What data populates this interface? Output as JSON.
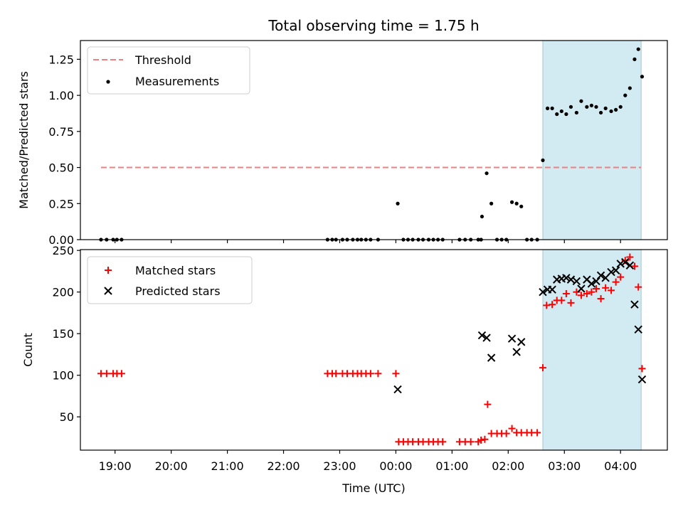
{
  "chart_data": [
    {
      "type": "scatter",
      "title": "Total observing time = 1.75 h",
      "ylabel": "Matched/Predicted stars",
      "xlabel": "",
      "xlim": [
        "18:23",
        "04:50"
      ],
      "ylim": [
        0,
        1.38
      ],
      "yticks": [
        "0.00",
        "0.25",
        "0.50",
        "0.75",
        "1.00",
        "1.25"
      ],
      "shaded_region": {
        "start": "02:37",
        "end": "04:22"
      },
      "threshold": {
        "value": 0.5,
        "start": "18:45",
        "end": "04:22",
        "color": "#f08080"
      },
      "legend": {
        "placement": "top-left",
        "entries": [
          "Threshold",
          "Measurements"
        ]
      },
      "series": [
        {
          "name": "Measurements",
          "color": "#000000",
          "marker": "dot",
          "points": [
            [
              "18:45",
              0
            ],
            [
              "18:51",
              0
            ],
            [
              "18:58",
              0
            ],
            [
              "19:02",
              0
            ],
            [
              "19:07",
              0
            ],
            [
              "22:47",
              0
            ],
            [
              "22:52",
              0
            ],
            [
              "22:56",
              0
            ],
            [
              "23:03",
              0
            ],
            [
              "23:08",
              0
            ],
            [
              "23:14",
              0
            ],
            [
              "23:19",
              0
            ],
            [
              "23:23",
              0
            ],
            [
              "23:28",
              0
            ],
            [
              "23:33",
              0
            ],
            [
              "23:41",
              0
            ],
            [
              "00:02",
              0.25
            ],
            [
              "00:08",
              0
            ],
            [
              "00:13",
              0
            ],
            [
              "00:18",
              0
            ],
            [
              "00:24",
              0
            ],
            [
              "00:29",
              0
            ],
            [
              "00:35",
              0
            ],
            [
              "00:40",
              0
            ],
            [
              "00:45",
              0
            ],
            [
              "00:50",
              0
            ],
            [
              "01:08",
              0
            ],
            [
              "01:14",
              0
            ],
            [
              "01:20",
              0
            ],
            [
              "01:28",
              0
            ],
            [
              "01:31",
              0
            ],
            [
              "01:32",
              0.16
            ],
            [
              "01:37",
              0.46
            ],
            [
              "01:42",
              0.25
            ],
            [
              "01:48",
              0
            ],
            [
              "01:53",
              0
            ],
            [
              "01:58",
              0
            ],
            [
              "02:04",
              0.26
            ],
            [
              "02:09",
              0.25
            ],
            [
              "02:14",
              0.23
            ],
            [
              "02:20",
              0
            ],
            [
              "02:25",
              0
            ],
            [
              "02:31",
              0
            ],
            [
              "02:37",
              0.55
            ],
            [
              "02:42",
              0.91
            ],
            [
              "02:47",
              0.91
            ],
            [
              "02:52",
              0.87
            ],
            [
              "02:57",
              0.89
            ],
            [
              "03:02",
              0.87
            ],
            [
              "03:07",
              0.92
            ],
            [
              "03:13",
              0.88
            ],
            [
              "03:18",
              0.96
            ],
            [
              "03:24",
              0.92
            ],
            [
              "03:29",
              0.93
            ],
            [
              "03:34",
              0.92
            ],
            [
              "03:39",
              0.88
            ],
            [
              "03:44",
              0.91
            ],
            [
              "03:50",
              0.89
            ],
            [
              "03:55",
              0.9
            ],
            [
              "04:00",
              0.92
            ],
            [
              "04:05",
              1.0
            ],
            [
              "04:10",
              1.05
            ],
            [
              "04:15",
              1.25
            ],
            [
              "04:19",
              1.32
            ],
            [
              "04:23",
              1.13
            ]
          ]
        }
      ]
    },
    {
      "type": "scatter",
      "title": "",
      "xlabel": "Time (UTC)",
      "ylabel": "Count",
      "xlim": [
        "18:23",
        "04:50"
      ],
      "ylim": [
        10,
        251
      ],
      "yticks": [
        "50",
        "100",
        "150",
        "200",
        "250"
      ],
      "xticks": [
        "19:00",
        "20:00",
        "21:00",
        "22:00",
        "23:00",
        "00:00",
        "01:00",
        "02:00",
        "03:00",
        "04:00"
      ],
      "shaded_region": {
        "start": "02:37",
        "end": "04:22"
      },
      "legend": {
        "placement": "top-left",
        "entries": [
          "Matched stars",
          "Predicted stars"
        ]
      },
      "series": [
        {
          "name": "Matched stars",
          "color": "#ff0000",
          "marker": "plus",
          "points": [
            [
              "18:45",
              102
            ],
            [
              "18:51",
              102
            ],
            [
              "18:58",
              102
            ],
            [
              "19:02",
              102
            ],
            [
              "19:07",
              102
            ],
            [
              "22:47",
              102
            ],
            [
              "22:52",
              102
            ],
            [
              "22:56",
              102
            ],
            [
              "23:03",
              102
            ],
            [
              "23:08",
              102
            ],
            [
              "23:14",
              102
            ],
            [
              "23:19",
              102
            ],
            [
              "23:23",
              102
            ],
            [
              "23:28",
              102
            ],
            [
              "23:33",
              102
            ],
            [
              "23:41",
              102
            ],
            [
              "00:00",
              102
            ],
            [
              "00:03",
              20
            ],
            [
              "00:08",
              20
            ],
            [
              "00:13",
              20
            ],
            [
              "00:18",
              20
            ],
            [
              "00:24",
              20
            ],
            [
              "00:29",
              20
            ],
            [
              "00:35",
              20
            ],
            [
              "00:40",
              20
            ],
            [
              "00:45",
              20
            ],
            [
              "00:50",
              20
            ],
            [
              "01:08",
              20
            ],
            [
              "01:14",
              20
            ],
            [
              "01:20",
              20
            ],
            [
              "01:28",
              20
            ],
            [
              "01:31",
              22
            ],
            [
              "01:35",
              23
            ],
            [
              "01:38",
              65
            ],
            [
              "01:42",
              30
            ],
            [
              "01:48",
              30
            ],
            [
              "01:53",
              30
            ],
            [
              "01:58",
              30
            ],
            [
              "02:04",
              36
            ],
            [
              "02:09",
              31
            ],
            [
              "02:14",
              31
            ],
            [
              "02:20",
              31
            ],
            [
              "02:25",
              31
            ],
            [
              "02:31",
              31
            ],
            [
              "02:37",
              109
            ],
            [
              "02:41",
              184
            ],
            [
              "02:47",
              185
            ],
            [
              "02:52",
              190
            ],
            [
              "02:57",
              190
            ],
            [
              "03:02",
              198
            ],
            [
              "03:07",
              187
            ],
            [
              "03:13",
              200
            ],
            [
              "03:18",
              196
            ],
            [
              "03:24",
              198
            ],
            [
              "03:29",
              200
            ],
            [
              "03:34",
              204
            ],
            [
              "03:39",
              192
            ],
            [
              "03:44",
              205
            ],
            [
              "03:50",
              202
            ],
            [
              "03:55",
              212
            ],
            [
              "04:00",
              218
            ],
            [
              "04:05",
              238
            ],
            [
              "04:10",
              242
            ],
            [
              "04:15",
              231
            ],
            [
              "04:19",
              206
            ],
            [
              "04:23",
              108
            ]
          ]
        },
        {
          "name": "Predicted stars",
          "color": "#000000",
          "marker": "x",
          "points": [
            [
              "00:02",
              83
            ],
            [
              "01:32",
              148
            ],
            [
              "01:37",
              145
            ],
            [
              "01:42",
              121
            ],
            [
              "02:04",
              144
            ],
            [
              "02:09",
              128
            ],
            [
              "02:14",
              140
            ],
            [
              "02:37",
              200
            ],
            [
              "02:42",
              203
            ],
            [
              "02:47",
              203
            ],
            [
              "02:52",
              215
            ],
            [
              "02:57",
              216
            ],
            [
              "03:02",
              217
            ],
            [
              "03:07",
              215
            ],
            [
              "03:13",
              213
            ],
            [
              "03:18",
              204
            ],
            [
              "03:24",
              215
            ],
            [
              "03:29",
              210
            ],
            [
              "03:34",
              213
            ],
            [
              "03:39",
              220
            ],
            [
              "03:44",
              217
            ],
            [
              "03:50",
              224
            ],
            [
              "03:55",
              226
            ],
            [
              "04:00",
              234
            ],
            [
              "04:05",
              236
            ],
            [
              "04:10",
              232
            ],
            [
              "04:15",
              185
            ],
            [
              "04:19",
              155
            ],
            [
              "04:23",
              95
            ]
          ]
        }
      ]
    }
  ]
}
